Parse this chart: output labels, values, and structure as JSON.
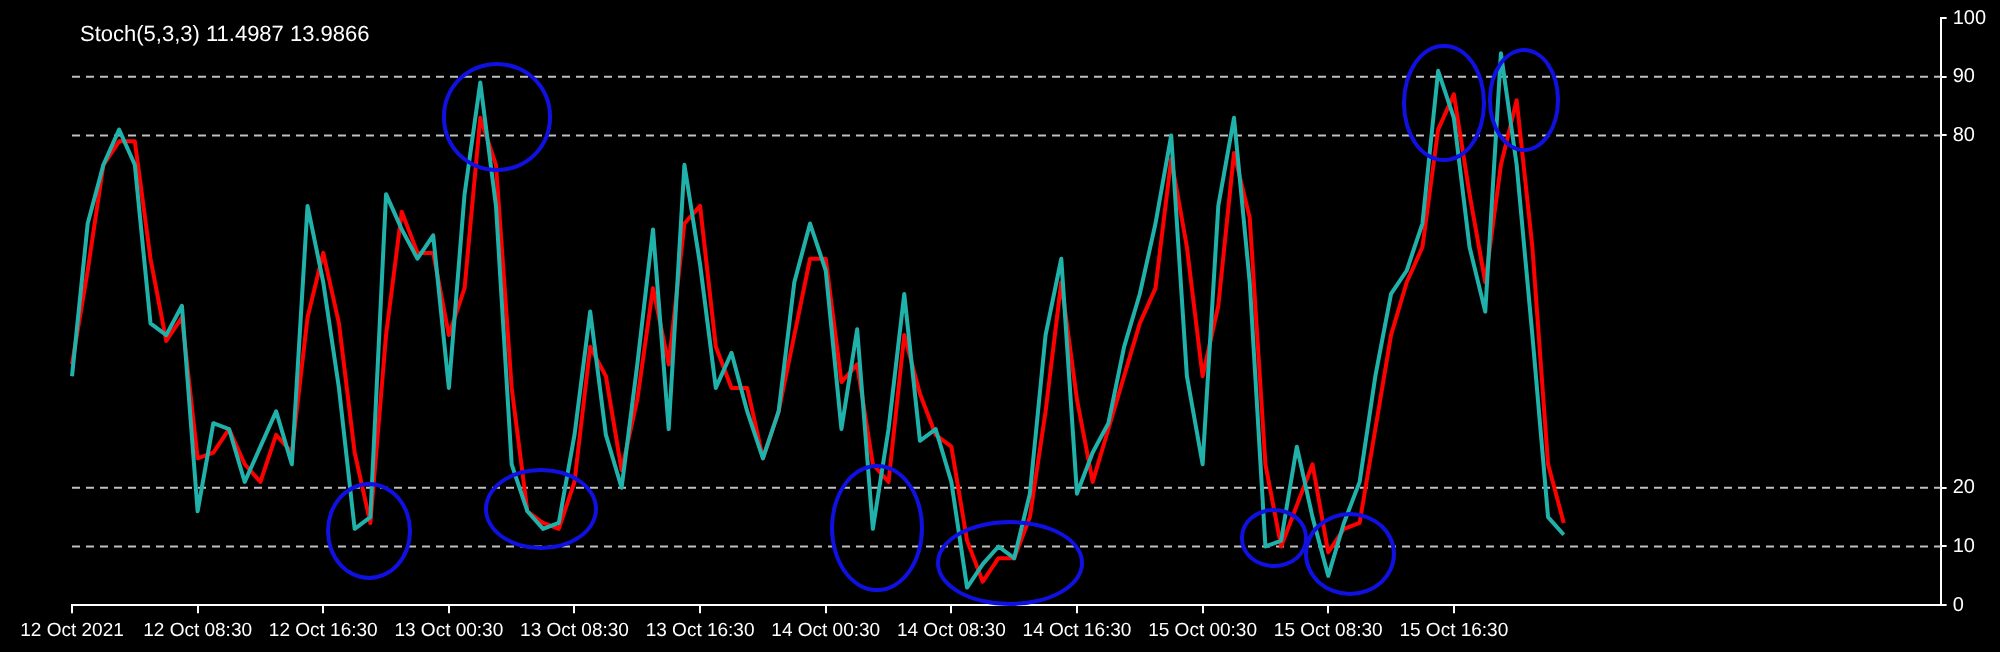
{
  "chart_data": {
    "type": "line",
    "title": "Stoch(5,3,3) 11.4987 13.9866",
    "categories": [
      "12 Oct 2021",
      null,
      null,
      null,
      null,
      null,
      null,
      null,
      "12 Oct 08:30",
      null,
      null,
      null,
      null,
      null,
      null,
      null,
      "12 Oct 16:30",
      null,
      null,
      null,
      null,
      null,
      null,
      null,
      "13 Oct 00:30",
      null,
      null,
      null,
      null,
      null,
      null,
      null,
      "13 Oct 08:30",
      null,
      null,
      null,
      null,
      null,
      null,
      null,
      "13 Oct 16:30",
      null,
      null,
      null,
      null,
      null,
      null,
      null,
      "14 Oct 00:30",
      null,
      null,
      null,
      null,
      null,
      null,
      null,
      "14 Oct 08:30",
      null,
      null,
      null,
      null,
      null,
      null,
      null,
      "14 Oct 16:30",
      null,
      null,
      null,
      null,
      null,
      null,
      null,
      "15 Oct 00:30",
      null,
      null,
      null,
      null,
      null,
      null,
      null,
      "15 Oct 08:30",
      null,
      null,
      null,
      null,
      null,
      null,
      null,
      "15 Oct 16:30",
      null,
      null,
      null,
      null,
      null,
      null,
      null,
      null,
      null,
      null,
      null,
      null,
      null,
      null,
      null,
      null,
      null,
      null,
      null,
      null,
      null,
      null,
      null,
      null,
      null,
      null,
      null,
      null,
      null,
      null,
      null
    ],
    "series": [
      {
        "color": "#20b2aa",
        "values": [
          39,
          65,
          75,
          81,
          75,
          48,
          46,
          51,
          16,
          31,
          30,
          21,
          27,
          33,
          24,
          68,
          55,
          37,
          13,
          15,
          70,
          64,
          59,
          63,
          37,
          70,
          89,
          68,
          24,
          16,
          13,
          14,
          29,
          50,
          29,
          20,
          41,
          64,
          30,
          75,
          58,
          37,
          43,
          33,
          25,
          33,
          55,
          65,
          57,
          30,
          47,
          13,
          30,
          53,
          28,
          30,
          21,
          3,
          7,
          10,
          8,
          19,
          46,
          59,
          19,
          26,
          31,
          44,
          53,
          65,
          80,
          39,
          24,
          68,
          83,
          55,
          10,
          11,
          27,
          15,
          5,
          14,
          21,
          39,
          53,
          57,
          65,
          91,
          83,
          61,
          50,
          94,
          75,
          46,
          15,
          12,
          null,
          null,
          null,
          null,
          null,
          null,
          null,
          null,
          null,
          null,
          null,
          null,
          null,
          null,
          null,
          null,
          null,
          null,
          null,
          null,
          null,
          null,
          null,
          null
        ]
      },
      {
        "color": "#ff0000",
        "values": [
          41,
          57,
          75,
          79,
          79,
          59,
          45,
          49,
          25,
          26,
          30,
          24,
          21,
          29,
          26,
          49,
          60,
          48,
          26,
          14,
          46,
          67,
          60,
          60,
          46,
          54,
          83,
          75,
          37,
          16,
          14,
          13,
          21,
          44,
          39,
          23,
          35,
          54,
          41,
          65,
          68,
          44,
          37,
          37,
          25,
          33,
          46,
          59,
          59,
          38,
          41,
          24,
          21,
          46,
          36,
          29,
          27,
          11,
          4,
          8,
          8,
          15,
          33,
          55,
          35,
          21,
          30,
          39,
          48,
          54,
          76,
          61,
          39,
          51,
          77,
          66,
          24,
          10,
          17,
          24,
          9,
          13,
          14,
          30,
          46,
          55,
          61,
          81,
          87,
          70,
          55,
          75,
          86,
          61,
          24,
          14,
          null,
          null,
          null,
          null,
          null,
          null,
          null,
          null,
          null,
          null,
          null,
          null,
          null,
          null,
          null,
          null,
          null,
          null,
          null,
          null,
          null,
          null,
          null,
          null
        ]
      }
    ],
    "ylim": [
      0,
      100
    ],
    "yticks": [
      0,
      10,
      20,
      80,
      90,
      100
    ],
    "ref_lines": [
      {
        "axis": "y",
        "value": 90,
        "color": "#c0c0c0",
        "line_style": "dashed"
      },
      {
        "axis": "y",
        "value": 80,
        "color": "#c0c0c0",
        "line_style": "dashed"
      },
      {
        "axis": "y",
        "value": 20,
        "color": "#c0c0c0",
        "line_style": "dashed"
      },
      {
        "axis": "y",
        "value": 10,
        "color": "#c0c0c0",
        "line_style": "dashed"
      }
    ],
    "grid": false,
    "legend": false,
    "marker": "none"
  }
}
